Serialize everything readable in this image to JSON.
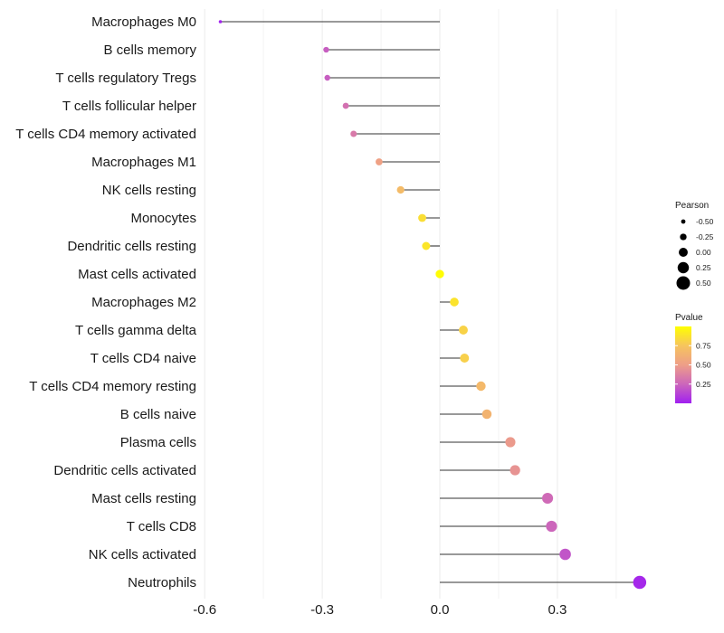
{
  "chart_data": {
    "type": "lollipop",
    "title": "",
    "xlabel": "",
    "ylabel": "",
    "xlim": [
      -0.6,
      0.5
    ],
    "xticks": [
      -0.6,
      -0.3,
      0.0,
      0.3
    ],
    "xtick_labels": [
      "-0.6",
      "-0.3",
      "0.0",
      "0.3"
    ],
    "grid": true,
    "points": [
      {
        "label": "Macrophages M0",
        "pearson": -0.56,
        "pvalue": 0.01
      },
      {
        "label": "B cells memory",
        "pearson": -0.29,
        "pvalue": 0.22
      },
      {
        "label": "T cells regulatory  Tregs",
        "pearson": -0.287,
        "pvalue": 0.22
      },
      {
        "label": "T cells follicular helper",
        "pearson": -0.24,
        "pvalue": 0.3
      },
      {
        "label": "T cells CD4 memory activated",
        "pearson": -0.22,
        "pvalue": 0.34
      },
      {
        "label": "Macrophages M1",
        "pearson": -0.155,
        "pvalue": 0.52
      },
      {
        "label": "NK cells resting",
        "pearson": -0.1,
        "pvalue": 0.69
      },
      {
        "label": "Monocytes",
        "pearson": -0.045,
        "pvalue": 0.86
      },
      {
        "label": "Dendritic cells resting",
        "pearson": -0.035,
        "pvalue": 0.89
      },
      {
        "label": "Mast cells activated",
        "pearson": 0.0,
        "pvalue": 0.99
      },
      {
        "label": "Macrophages M2",
        "pearson": 0.037,
        "pvalue": 0.88
      },
      {
        "label": "T cells gamma delta",
        "pearson": 0.06,
        "pvalue": 0.81
      },
      {
        "label": "T cells CD4 naive",
        "pearson": 0.063,
        "pvalue": 0.8
      },
      {
        "label": "T cells CD4 memory resting",
        "pearson": 0.105,
        "pvalue": 0.68
      },
      {
        "label": "B cells naive",
        "pearson": 0.12,
        "pvalue": 0.64
      },
      {
        "label": "Plasma cells",
        "pearson": 0.18,
        "pvalue": 0.48
      },
      {
        "label": "Dendritic cells activated",
        "pearson": 0.192,
        "pvalue": 0.45
      },
      {
        "label": "Mast cells resting",
        "pearson": 0.275,
        "pvalue": 0.27
      },
      {
        "label": "T cells CD8",
        "pearson": 0.285,
        "pvalue": 0.25
      },
      {
        "label": "NK cells activated",
        "pearson": 0.32,
        "pvalue": 0.19
      },
      {
        "label": "Neutrophils",
        "pearson": 0.51,
        "pvalue": 0.03
      }
    ],
    "legend_size": {
      "title": "Pearson",
      "position": "right",
      "values": [
        -0.5,
        -0.25,
        0.0,
        0.25,
        0.5
      ],
      "labels": [
        "-0.50",
        "-0.25",
        "0.00",
        "0.25",
        "0.50"
      ]
    },
    "legend_color": {
      "title": "Pvalue",
      "position": "right",
      "range": [
        0,
        1
      ],
      "ticks": [
        0.75,
        0.5,
        0.25
      ],
      "tick_labels": [
        "0.75",
        "0.50",
        "0.25"
      ],
      "colors": [
        "#a020f0",
        "#cc66bb",
        "#ee9e88",
        "#f6c45e",
        "#ffff00"
      ]
    }
  }
}
